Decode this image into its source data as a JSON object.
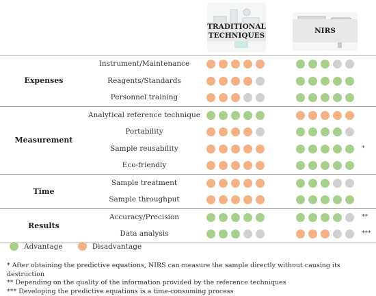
{
  "colors": {
    "advantage": "#a8d08d",
    "disadvantage": "#f4b183",
    "neutral": "#d0d0d0"
  },
  "header": {
    "traditional_label": "TRADITIONAL TECHNIQUES",
    "nirs_label": "NIRS"
  },
  "groups": [
    {
      "label": "Expenses",
      "rows": [
        {
          "criterion": "Instrument/Maintenance",
          "trad": [
            "D",
            "D",
            "D",
            "D",
            "D"
          ],
          "nirs": [
            "A",
            "A",
            "A",
            "N",
            "N"
          ],
          "note": ""
        },
        {
          "criterion": "Reagents/Standards",
          "trad": [
            "D",
            "D",
            "D",
            "D",
            "N"
          ],
          "nirs": [
            "A",
            "A",
            "A",
            "A",
            "A"
          ],
          "note": ""
        },
        {
          "criterion": "Personnel training",
          "trad": [
            "D",
            "D",
            "D",
            "N",
            "N"
          ],
          "nirs": [
            "A",
            "A",
            "A",
            "A",
            "A"
          ],
          "note": ""
        }
      ]
    },
    {
      "label": "Measurement",
      "rows": [
        {
          "criterion": "Analytical reference technique",
          "trad": [
            "A",
            "A",
            "A",
            "A",
            "A"
          ],
          "nirs": [
            "D",
            "D",
            "D",
            "D",
            "D"
          ],
          "note": ""
        },
        {
          "criterion": "Portability",
          "trad": [
            "D",
            "D",
            "D",
            "D",
            "N"
          ],
          "nirs": [
            "A",
            "A",
            "A",
            "A",
            "N"
          ],
          "note": ""
        },
        {
          "criterion": "Sample reusability",
          "trad": [
            "D",
            "D",
            "D",
            "D",
            "D"
          ],
          "nirs": [
            "A",
            "A",
            "A",
            "A",
            "A"
          ],
          "note": "*"
        },
        {
          "criterion": "Eco-friendly",
          "trad": [
            "D",
            "D",
            "D",
            "D",
            "D"
          ],
          "nirs": [
            "A",
            "A",
            "A",
            "A",
            "A"
          ],
          "note": ""
        }
      ]
    },
    {
      "label": "Time",
      "rows": [
        {
          "criterion": "Sample treatment",
          "trad": [
            "D",
            "D",
            "D",
            "D",
            "D"
          ],
          "nirs": [
            "A",
            "A",
            "A",
            "N",
            "N"
          ],
          "note": ""
        },
        {
          "criterion": "Sample throughput",
          "trad": [
            "D",
            "D",
            "D",
            "D",
            "D"
          ],
          "nirs": [
            "A",
            "A",
            "A",
            "A",
            "A"
          ],
          "note": ""
        }
      ]
    },
    {
      "label": "Results",
      "rows": [
        {
          "criterion": "Accuracy/Precision",
          "trad": [
            "A",
            "A",
            "A",
            "A",
            "A"
          ],
          "nirs": [
            "A",
            "A",
            "A",
            "A",
            "N"
          ],
          "note": "**"
        },
        {
          "criterion": "Data analysis",
          "trad": [
            "A",
            "A",
            "A",
            "N",
            "N"
          ],
          "nirs": [
            "D",
            "D",
            "D",
            "N",
            "N"
          ],
          "note": "***"
        }
      ]
    }
  ],
  "legend": {
    "advantage": "Advantage",
    "disadvantage": "Disadvantage"
  },
  "footnotes": [
    "* After obtaining the predictive equations, NIRS can measure the sample directly without causing its destruction",
    "** Depending on the quality of the information provided by the reference techniques",
    "*** Developing the predictive equations is a time-consuming process"
  ]
}
